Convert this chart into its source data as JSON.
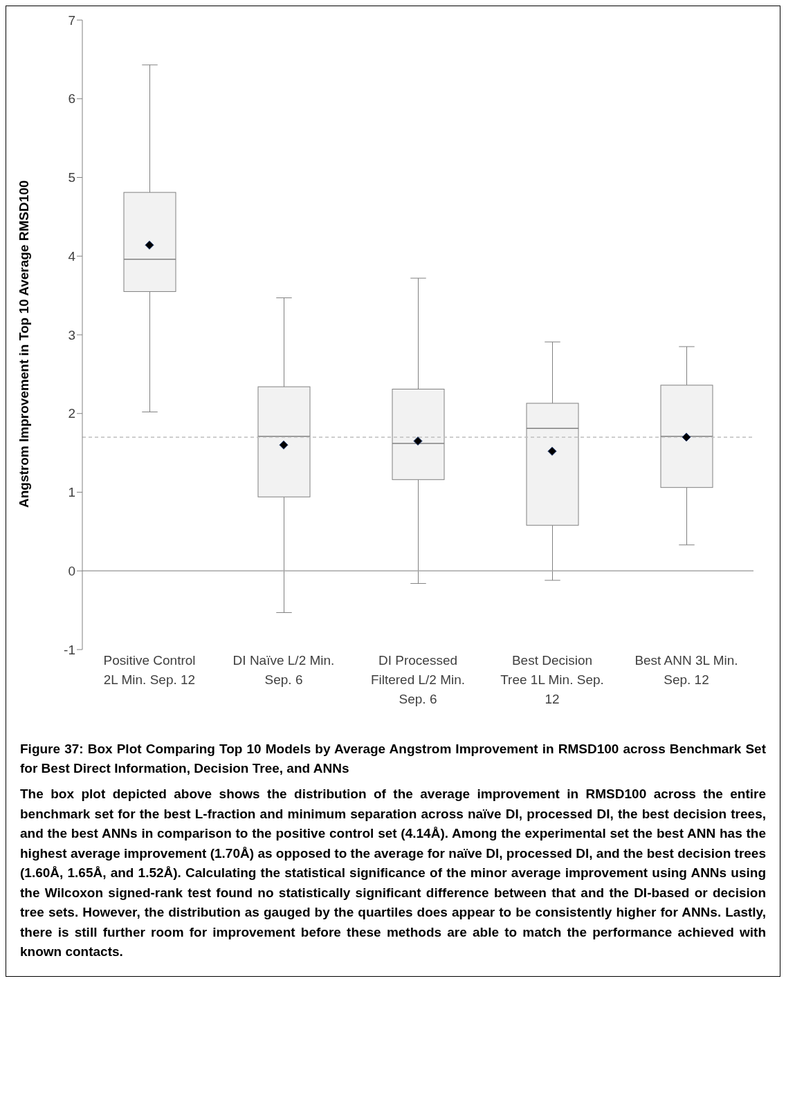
{
  "chart_data": {
    "type": "box",
    "ylabel": "Angstrom Improvement in Top 10 Average RMSD100",
    "categories": [
      "Positive Control 2L Min. Sep. 12",
      "DI Naïve L/2 Min. Sep. 6",
      "DI Processed Filtered L/2 Min. Sep. 6",
      "Best Decision Tree 1L Min. Sep. 12",
      "Best ANN 3L Min. Sep. 12"
    ],
    "boxes": [
      {
        "low": 2.02,
        "q1": 3.55,
        "median": 3.96,
        "q3": 4.81,
        "high": 6.43,
        "mean": 4.14
      },
      {
        "low": -0.53,
        "q1": 0.94,
        "median": 1.71,
        "q3": 2.34,
        "high": 3.47,
        "mean": 1.6
      },
      {
        "low": -0.16,
        "q1": 1.16,
        "median": 1.62,
        "q3": 2.31,
        "high": 3.72,
        "mean": 1.65
      },
      {
        "low": -0.12,
        "q1": 0.58,
        "median": 1.81,
        "q3": 2.13,
        "high": 2.91,
        "mean": 1.52
      },
      {
        "low": 0.33,
        "q1": 1.06,
        "median": 1.71,
        "q3": 2.36,
        "high": 2.85,
        "mean": 1.7
      }
    ],
    "color": "#f2f2f2",
    "marker": "diamond",
    "ylim": [
      -1,
      7
    ],
    "yticks": [
      -1,
      0,
      1,
      2,
      3,
      4,
      5,
      6,
      7
    ],
    "grid": false,
    "legend": false,
    "ref_lines": [
      {
        "axis": "y",
        "value": 0,
        "line_style": "solid",
        "color": "#a6a6a6"
      },
      {
        "axis": "y",
        "value": 1.7,
        "line_style": "dashed",
        "color": "#bfbfbf"
      }
    ],
    "annotations": [
      "Figure 37: Box Plot Comparing Top 10 Models by Average Angstrom Improvement in RMSD100 across Benchmark Set for Best Direct Information, Decision Tree, and ANNs",
      "The box plot depicted above shows the distribution of the average improvement in RMSD100 across the entire benchmark set for the best L-fraction and minimum separation across naïve DI, processed DI, the best decision trees, and the best ANNs in comparison to the positive control set (4.14Å). Among the experimental set the best ANN has the highest average improvement (1.70Å) as opposed to the average for naïve DI, processed DI, and the best decision trees (1.60Å, 1.65Å, and 1.52Å). Calculating the statistical significance of the minor average improvement using ANNs using the Wilcoxon signed-rank test found no statistically significant difference between that and the DI-based or decision tree sets. However, the distribution as gauged by the quartiles does appear to be consistently higher for ANNs. Lastly, there is still further room for improvement before these methods are able to match the performance achieved with known contacts."
    ]
  }
}
